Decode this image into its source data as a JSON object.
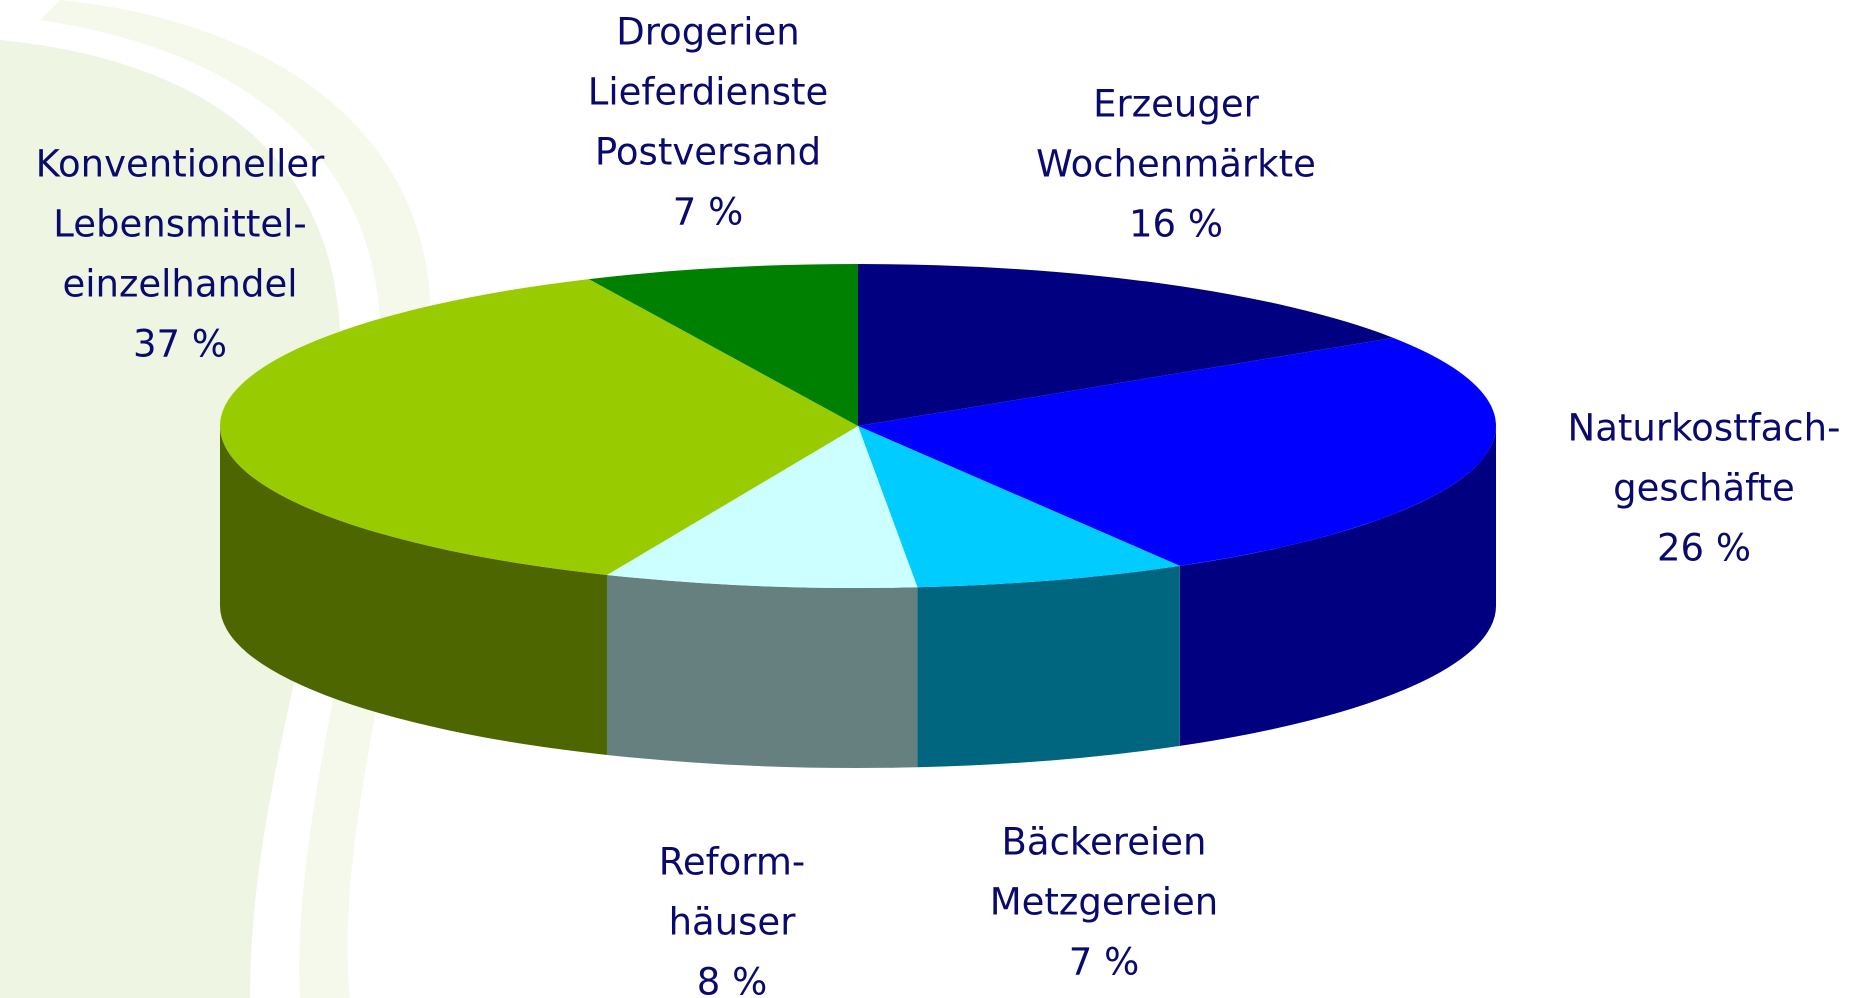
{
  "chart_data": {
    "type": "pie3d",
    "categories": [
      [
        "Erzeuger",
        "Wochenmärkte"
      ],
      [
        "Naturkostfach-",
        "geschäfte"
      ],
      [
        "Bäckereien",
        "Metzgereien"
      ],
      [
        "Reform-",
        "häuser"
      ],
      [
        "Konventioneller",
        "Lebensmittel-",
        "einzelhandel"
      ],
      [
        "Drogerien",
        "Lieferdienste",
        "Postversand"
      ]
    ],
    "values": [
      16,
      26,
      7,
      8,
      37,
      7
    ],
    "value_labels": [
      "16 %",
      "26 %",
      "7 %",
      "8 %",
      "37 %",
      "7 %"
    ],
    "colors": [
      "#000080",
      "#0000ff",
      "#00ccff",
      "#ccffff",
      "#99cc00",
      "#008000"
    ],
    "side_colors": [
      "#000060",
      "#000080",
      "#006680",
      "#668080",
      "#4d6600",
      "#005a00"
    ]
  }
}
